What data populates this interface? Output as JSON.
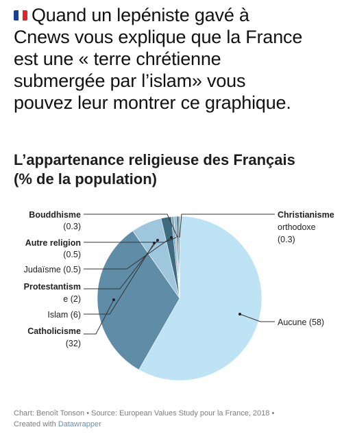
{
  "post": {
    "flag_colors": [
      "#1c3f94",
      "#ffffff",
      "#e0242e"
    ],
    "lines": [
      "Quand un lepéniste gavé à",
      "Cnews vous explique que la France",
      "est une « terre chrétienne",
      "submergée par l’islam» vous",
      "pouvez leur montrer ce graphique."
    ]
  },
  "chart_data": {
    "type": "pie",
    "title_lines": [
      "L’appartenance religieuse des Français",
      "(% de la population)"
    ],
    "slices": [
      {
        "label": "Aucune",
        "value": 58,
        "color": "#bde3f4"
      },
      {
        "label": "Catholicisme",
        "value": 32,
        "color": "#5f8da7"
      },
      {
        "label": "Islam",
        "value": 6,
        "color": "#9ec6dc"
      },
      {
        "label": "Protestantisme",
        "value": 2,
        "color": "#3f6b80"
      },
      {
        "label": "Judaïsme",
        "value": 0.5,
        "color": "#7fa8bf"
      },
      {
        "label": "Autre religion",
        "value": 0.5,
        "color": "#9bbfd2"
      },
      {
        "label": "Bouddhisme",
        "value": 0.3,
        "color": "#2f5568"
      },
      {
        "label": "Christianisme orthodoxe",
        "value": 0.3,
        "color": "#5a7f90"
      }
    ]
  },
  "labels": {
    "bouddhisme": [
      "Bouddhisme",
      "(0.3)"
    ],
    "autre": [
      "Autre religion",
      "(0.5)"
    ],
    "judaisme": "Judaïsme (0.5)",
    "protestantisme": [
      "Protestantism",
      "e (2)"
    ],
    "islam": "Islam (6)",
    "catholicisme": [
      "Catholicisme",
      "(32)"
    ],
    "orthodoxe": [
      "Christianisme",
      "orthodoxe",
      "(0.3)"
    ],
    "aucune": "Aucune (58)"
  },
  "footer": {
    "line1": "Chart: Benoît Tonson • Source: European Values Study pour la France, 2018 •",
    "line2_prefix": "Created with ",
    "line2_link": "Datawrapper"
  }
}
